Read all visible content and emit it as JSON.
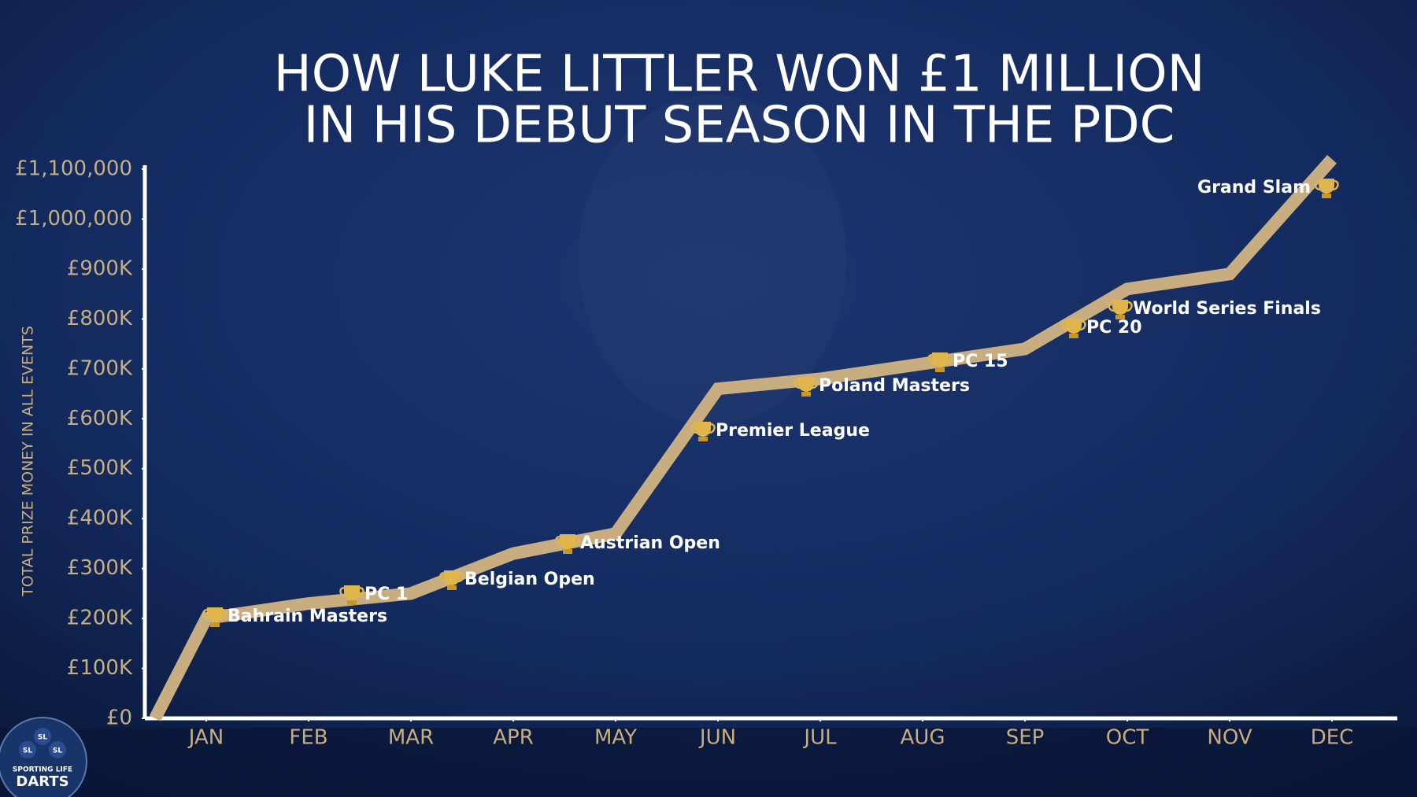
{
  "chart_data": {
    "type": "line",
    "title": [
      "HOW LUKE LITTLER WON £1 MILLION",
      "IN HIS DEBUT SEASON IN THE PDC"
    ],
    "y_label": "TOTAL PRIZE MONEY IN ALL EVENTS",
    "x": [
      0.5,
      1,
      2,
      3,
      4,
      5,
      6,
      7,
      8,
      9,
      10,
      11,
      12
    ],
    "series": [
      {
        "color": "#c7ad80",
        "values": [
          0,
          200000,
          230000,
          250000,
          330000,
          370000,
          660000,
          680000,
          710000,
          740000,
          860000,
          890000,
          1120000
        ]
      }
    ],
    "xlim": [
      0.4,
      12.5
    ],
    "xticks": [
      {
        "value": 1,
        "label": "JAN"
      },
      {
        "value": 2,
        "label": "FEB"
      },
      {
        "value": 3,
        "label": "MAR"
      },
      {
        "value": 4,
        "label": "APR"
      },
      {
        "value": 5,
        "label": "MAY"
      },
      {
        "value": 6,
        "label": "JUN"
      },
      {
        "value": 7,
        "label": "JUL"
      },
      {
        "value": 8,
        "label": "AUG"
      },
      {
        "value": 9,
        "label": "SEP"
      },
      {
        "value": 10,
        "label": "OCT"
      },
      {
        "value": 11,
        "label": "NOV"
      },
      {
        "value": 12,
        "label": "DEC"
      }
    ],
    "ylim": [
      0,
      1100000
    ],
    "yticks": [
      {
        "value": 0,
        "label": "£0"
      },
      {
        "value": 100000,
        "label": "£100K"
      },
      {
        "value": 200000,
        "label": "£200K"
      },
      {
        "value": 300000,
        "label": "£300K"
      },
      {
        "value": 400000,
        "label": "£400K"
      },
      {
        "value": 500000,
        "label": "£500K"
      },
      {
        "value": 600000,
        "label": "£600K"
      },
      {
        "value": 700000,
        "label": "£700K"
      },
      {
        "value": 800000,
        "label": "£800K"
      },
      {
        "value": 900000,
        "label": "£900K"
      },
      {
        "value": 1000000,
        "label": "£1,000,000"
      },
      {
        "value": 1100000,
        "label": "£1,100,000"
      }
    ],
    "annotations": [
      "Bahrain Masters",
      "PC 1",
      "Belgian Open",
      "Austrian Open",
      "Premier League",
      "Poland Masters",
      "PC 15",
      "PC 20",
      "World Series Finals",
      "Grand Slam"
    ]
  },
  "logo": {
    "badge": "SL",
    "top": "SPORTING LIFE",
    "bottom": "DARTS"
  }
}
